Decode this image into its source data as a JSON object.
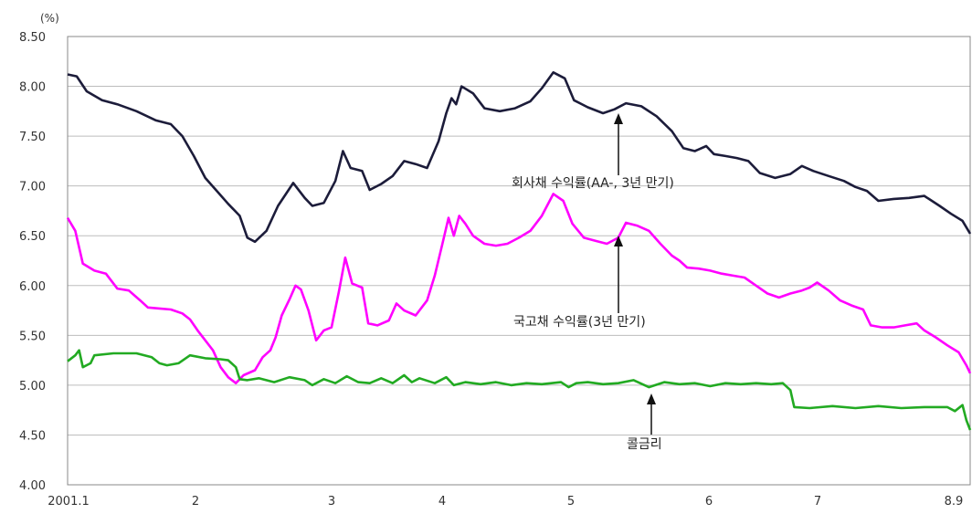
{
  "chart_data": {
    "type": "line",
    "unit_label": "(%)",
    "ylim": [
      4.0,
      8.5
    ],
    "y_ticks": [
      "8.50",
      "8.00",
      "7.50",
      "7.00",
      "6.50",
      "6.00",
      "5.50",
      "5.00",
      "4.50",
      "4.00"
    ],
    "x_ticks": [
      "2001.1",
      "2",
      "3",
      "4",
      "5",
      "6",
      "7",
      "8.9"
    ],
    "grid": "horizontal",
    "series": [
      {
        "color": "#1c1c3a",
        "annotation": "회사채 수익률(AA-, 3년 만기)",
        "points": [
          [
            0.0,
            8.12
          ],
          [
            0.12,
            8.1
          ],
          [
            0.25,
            7.95
          ],
          [
            0.45,
            7.86
          ],
          [
            0.65,
            7.82
          ],
          [
            0.9,
            7.75
          ],
          [
            1.15,
            7.66
          ],
          [
            1.35,
            7.62
          ],
          [
            1.5,
            7.5
          ],
          [
            1.65,
            7.3
          ],
          [
            1.8,
            7.08
          ],
          [
            1.95,
            6.95
          ],
          [
            2.1,
            6.82
          ],
          [
            2.25,
            6.7
          ],
          [
            2.35,
            6.48
          ],
          [
            2.45,
            6.44
          ],
          [
            2.6,
            6.55
          ],
          [
            2.75,
            6.8
          ],
          [
            2.95,
            7.03
          ],
          [
            3.1,
            6.88
          ],
          [
            3.2,
            6.8
          ],
          [
            3.35,
            6.83
          ],
          [
            3.5,
            7.05
          ],
          [
            3.6,
            7.35
          ],
          [
            3.7,
            7.18
          ],
          [
            3.85,
            7.15
          ],
          [
            3.95,
            6.96
          ],
          [
            4.1,
            7.02
          ],
          [
            4.25,
            7.1
          ],
          [
            4.4,
            7.25
          ],
          [
            4.55,
            7.22
          ],
          [
            4.7,
            7.18
          ],
          [
            4.85,
            7.45
          ],
          [
            4.95,
            7.73
          ],
          [
            5.02,
            7.88
          ],
          [
            5.08,
            7.82
          ],
          [
            5.15,
            8.0
          ],
          [
            5.3,
            7.93
          ],
          [
            5.45,
            7.78
          ],
          [
            5.65,
            7.75
          ],
          [
            5.85,
            7.78
          ],
          [
            6.05,
            7.85
          ],
          [
            6.2,
            7.98
          ],
          [
            6.35,
            8.14
          ],
          [
            6.5,
            8.08
          ],
          [
            6.62,
            7.86
          ],
          [
            6.8,
            7.79
          ],
          [
            7.0,
            7.73
          ],
          [
            7.15,
            7.77
          ],
          [
            7.3,
            7.83
          ],
          [
            7.5,
            7.8
          ],
          [
            7.7,
            7.7
          ],
          [
            7.9,
            7.55
          ],
          [
            8.05,
            7.38
          ],
          [
            8.2,
            7.35
          ],
          [
            8.35,
            7.4
          ],
          [
            8.45,
            7.32
          ],
          [
            8.6,
            7.3
          ],
          [
            8.75,
            7.28
          ],
          [
            8.9,
            7.25
          ],
          [
            9.05,
            7.13
          ],
          [
            9.25,
            7.08
          ],
          [
            9.45,
            7.12
          ],
          [
            9.6,
            7.2
          ],
          [
            9.75,
            7.15
          ],
          [
            9.95,
            7.1
          ],
          [
            10.15,
            7.05
          ],
          [
            10.3,
            6.99
          ],
          [
            10.45,
            6.95
          ],
          [
            10.6,
            6.85
          ],
          [
            10.8,
            6.87
          ],
          [
            11.0,
            6.88
          ],
          [
            11.2,
            6.9
          ],
          [
            11.4,
            6.8
          ],
          [
            11.55,
            6.72
          ],
          [
            11.7,
            6.65
          ],
          [
            11.8,
            6.52
          ]
        ]
      },
      {
        "color": "#ff00ff",
        "annotation": "국고채 수익률(3년 만기)",
        "points": [
          [
            0.0,
            6.68
          ],
          [
            0.1,
            6.55
          ],
          [
            0.2,
            6.22
          ],
          [
            0.35,
            6.15
          ],
          [
            0.5,
            6.12
          ],
          [
            0.65,
            5.97
          ],
          [
            0.8,
            5.95
          ],
          [
            0.95,
            5.85
          ],
          [
            1.05,
            5.78
          ],
          [
            1.2,
            5.77
          ],
          [
            1.35,
            5.76
          ],
          [
            1.5,
            5.72
          ],
          [
            1.6,
            5.66
          ],
          [
            1.7,
            5.55
          ],
          [
            1.8,
            5.45
          ],
          [
            1.9,
            5.35
          ],
          [
            2.0,
            5.18
          ],
          [
            2.1,
            5.08
          ],
          [
            2.2,
            5.02
          ],
          [
            2.3,
            5.1
          ],
          [
            2.45,
            5.15
          ],
          [
            2.55,
            5.28
          ],
          [
            2.65,
            5.35
          ],
          [
            2.72,
            5.48
          ],
          [
            2.8,
            5.7
          ],
          [
            2.9,
            5.86
          ],
          [
            2.98,
            6.0
          ],
          [
            3.05,
            5.96
          ],
          [
            3.15,
            5.75
          ],
          [
            3.25,
            5.45
          ],
          [
            3.35,
            5.55
          ],
          [
            3.45,
            5.58
          ],
          [
            3.55,
            5.95
          ],
          [
            3.63,
            6.28
          ],
          [
            3.72,
            6.02
          ],
          [
            3.85,
            5.98
          ],
          [
            3.93,
            5.62
          ],
          [
            4.05,
            5.6
          ],
          [
            4.2,
            5.65
          ],
          [
            4.3,
            5.82
          ],
          [
            4.4,
            5.75
          ],
          [
            4.55,
            5.7
          ],
          [
            4.7,
            5.85
          ],
          [
            4.8,
            6.1
          ],
          [
            4.9,
            6.42
          ],
          [
            4.98,
            6.68
          ],
          [
            5.05,
            6.5
          ],
          [
            5.12,
            6.7
          ],
          [
            5.2,
            6.62
          ],
          [
            5.3,
            6.5
          ],
          [
            5.45,
            6.42
          ],
          [
            5.6,
            6.4
          ],
          [
            5.75,
            6.42
          ],
          [
            5.9,
            6.48
          ],
          [
            6.05,
            6.55
          ],
          [
            6.2,
            6.7
          ],
          [
            6.35,
            6.92
          ],
          [
            6.48,
            6.85
          ],
          [
            6.6,
            6.62
          ],
          [
            6.75,
            6.48
          ],
          [
            6.9,
            6.45
          ],
          [
            7.05,
            6.42
          ],
          [
            7.2,
            6.48
          ],
          [
            7.3,
            6.63
          ],
          [
            7.45,
            6.6
          ],
          [
            7.6,
            6.55
          ],
          [
            7.75,
            6.42
          ],
          [
            7.9,
            6.3
          ],
          [
            8.0,
            6.25
          ],
          [
            8.1,
            6.18
          ],
          [
            8.25,
            6.17
          ],
          [
            8.4,
            6.15
          ],
          [
            8.55,
            6.12
          ],
          [
            8.7,
            6.1
          ],
          [
            8.85,
            6.08
          ],
          [
            9.0,
            6.0
          ],
          [
            9.15,
            5.92
          ],
          [
            9.3,
            5.88
          ],
          [
            9.45,
            5.92
          ],
          [
            9.6,
            5.95
          ],
          [
            9.7,
            5.98
          ],
          [
            9.8,
            6.03
          ],
          [
            9.95,
            5.95
          ],
          [
            10.1,
            5.85
          ],
          [
            10.25,
            5.8
          ],
          [
            10.4,
            5.76
          ],
          [
            10.5,
            5.6
          ],
          [
            10.65,
            5.58
          ],
          [
            10.8,
            5.58
          ],
          [
            10.95,
            5.6
          ],
          [
            11.1,
            5.62
          ],
          [
            11.2,
            5.55
          ],
          [
            11.35,
            5.48
          ],
          [
            11.5,
            5.4
          ],
          [
            11.65,
            5.33
          ],
          [
            11.75,
            5.2
          ],
          [
            11.8,
            5.12
          ]
        ]
      },
      {
        "color": "#22aa22",
        "annotation": "콜금리",
        "points": [
          [
            0.0,
            5.24
          ],
          [
            0.1,
            5.3
          ],
          [
            0.15,
            5.35
          ],
          [
            0.2,
            5.18
          ],
          [
            0.3,
            5.22
          ],
          [
            0.35,
            5.3
          ],
          [
            0.6,
            5.32
          ],
          [
            0.9,
            5.32
          ],
          [
            1.1,
            5.28
          ],
          [
            1.2,
            5.22
          ],
          [
            1.3,
            5.2
          ],
          [
            1.45,
            5.22
          ],
          [
            1.6,
            5.3
          ],
          [
            1.8,
            5.27
          ],
          [
            2.0,
            5.26
          ],
          [
            2.1,
            5.25
          ],
          [
            2.2,
            5.18
          ],
          [
            2.25,
            5.06
          ],
          [
            2.35,
            5.05
          ],
          [
            2.5,
            5.07
          ],
          [
            2.7,
            5.03
          ],
          [
            2.9,
            5.08
          ],
          [
            3.1,
            5.05
          ],
          [
            3.2,
            5.0
          ],
          [
            3.35,
            5.06
          ],
          [
            3.5,
            5.02
          ],
          [
            3.65,
            5.09
          ],
          [
            3.8,
            5.03
          ],
          [
            3.95,
            5.02
          ],
          [
            4.1,
            5.07
          ],
          [
            4.25,
            5.02
          ],
          [
            4.4,
            5.1
          ],
          [
            4.5,
            5.03
          ],
          [
            4.6,
            5.07
          ],
          [
            4.8,
            5.02
          ],
          [
            4.95,
            5.08
          ],
          [
            5.05,
            5.0
          ],
          [
            5.2,
            5.03
          ],
          [
            5.4,
            5.01
          ],
          [
            5.6,
            5.03
          ],
          [
            5.8,
            5.0
          ],
          [
            6.0,
            5.02
          ],
          [
            6.2,
            5.01
          ],
          [
            6.45,
            5.03
          ],
          [
            6.55,
            4.98
          ],
          [
            6.65,
            5.02
          ],
          [
            6.8,
            5.03
          ],
          [
            7.0,
            5.01
          ],
          [
            7.2,
            5.02
          ],
          [
            7.4,
            5.05
          ],
          [
            7.6,
            4.98
          ],
          [
            7.8,
            5.03
          ],
          [
            8.0,
            5.01
          ],
          [
            8.2,
            5.02
          ],
          [
            8.4,
            4.99
          ],
          [
            8.6,
            5.02
          ],
          [
            8.8,
            5.01
          ],
          [
            9.0,
            5.02
          ],
          [
            9.2,
            5.01
          ],
          [
            9.35,
            5.02
          ],
          [
            9.45,
            4.95
          ],
          [
            9.5,
            4.78
          ],
          [
            9.7,
            4.77
          ],
          [
            10.0,
            4.79
          ],
          [
            10.3,
            4.77
          ],
          [
            10.6,
            4.79
          ],
          [
            10.9,
            4.77
          ],
          [
            11.2,
            4.78
          ],
          [
            11.5,
            4.78
          ],
          [
            11.6,
            4.74
          ],
          [
            11.7,
            4.8
          ],
          [
            11.75,
            4.65
          ],
          [
            11.8,
            4.55
          ]
        ]
      }
    ]
  }
}
